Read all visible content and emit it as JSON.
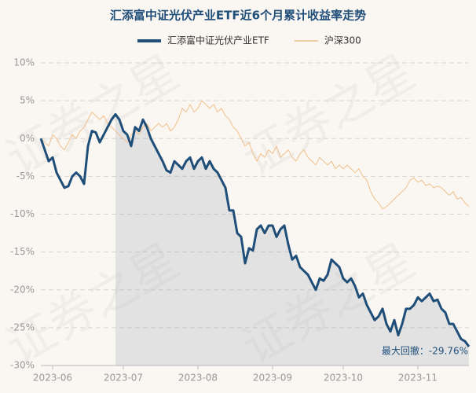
{
  "chart_data": {
    "type": "line",
    "title": "汇添富中证光伏产业ETF近6个月累计收益率走势",
    "watermark": "证券之星",
    "annotation": "最大回撤：-29.76%",
    "categories": [
      null,
      null,
      null,
      "2023-06",
      null,
      null,
      null,
      null,
      null,
      null,
      null,
      null,
      null,
      null,
      null,
      null,
      null,
      null,
      null,
      null,
      null,
      "2023-07",
      null,
      null,
      null,
      null,
      null,
      null,
      null,
      null,
      null,
      null,
      null,
      null,
      null,
      null,
      null,
      null,
      null,
      null,
      "2023-08",
      null,
      null,
      null,
      null,
      null,
      null,
      null,
      null,
      null,
      null,
      null,
      null,
      null,
      null,
      null,
      null,
      null,
      null,
      "2023-09",
      null,
      null,
      null,
      null,
      null,
      null,
      null,
      null,
      null,
      null,
      null,
      null,
      null,
      null,
      null,
      null,
      null,
      "2023-10",
      null,
      null,
      null,
      null,
      null,
      null,
      null,
      null,
      null,
      null,
      null,
      null,
      null,
      null,
      null,
      null,
      null,
      null,
      "2023-11",
      null,
      null,
      null,
      null,
      null,
      null,
      null,
      null,
      null,
      null,
      null,
      null,
      null
    ],
    "series": [
      {
        "name": "汇添富中证光伏产业ETF",
        "color": "#1f4e79",
        "values": [
          0,
          -1.5,
          -3,
          -2.5,
          -4.5,
          -5.5,
          -6.5,
          -6.3,
          -5,
          -4.5,
          -5,
          -6,
          -1,
          1,
          0.8,
          -0.5,
          0.5,
          1.5,
          2.5,
          3.2,
          2.5,
          1,
          0.5,
          -1,
          1.5,
          1,
          2.5,
          1.5,
          0,
          -1,
          -2,
          -3,
          -4.2,
          -4.5,
          -3,
          -3.5,
          -4,
          -3,
          -2.5,
          -4,
          -3,
          -2.5,
          -4,
          -3,
          -4,
          -4.5,
          -5.5,
          -6.5,
          -9.5,
          -9.5,
          -12.5,
          -13,
          -16.5,
          -14.5,
          -14.8,
          -12,
          -11.5,
          -12.5,
          -11.5,
          -11.5,
          -13,
          -12,
          -11.5,
          -14,
          -16,
          -15.5,
          -17,
          -17.5,
          -18,
          -19,
          -20,
          -18.5,
          -18.8,
          -18,
          -16,
          -16.5,
          -17,
          -18.5,
          -19,
          -18.5,
          -19.5,
          -21,
          -20.5,
          -22,
          -23,
          -24,
          -23.5,
          -22.5,
          -24.5,
          -25.5,
          -24,
          -26,
          -24.5,
          -22.5,
          -22.5,
          -22,
          -21,
          -21.5,
          -21,
          -20.5,
          -21.5,
          -21.3,
          -22.5,
          -23,
          -24.5,
          -24.5,
          -25.5,
          -26.5,
          -26.8,
          -27.5
        ]
      },
      {
        "name": "沪深300",
        "color": "#f0c08a",
        "values": [
          0,
          -0.5,
          -1,
          0.5,
          0,
          -1,
          -1.5,
          -0.5,
          0.5,
          0,
          1,
          1.5,
          2.5,
          3.5,
          3,
          2.5,
          3,
          2,
          1.5,
          1,
          0.5,
          0,
          -0.5,
          0.5,
          1,
          0.5,
          1.5,
          2,
          1,
          1.5,
          2,
          1.5,
          2,
          1,
          1.5,
          2.5,
          4,
          3.5,
          4.5,
          3.5,
          4,
          5,
          4.5,
          4,
          4.5,
          3.5,
          4,
          3,
          2.5,
          1.5,
          1,
          0,
          -1,
          -0.5,
          -2,
          -3,
          -2,
          -2.5,
          -1.5,
          -2,
          -1,
          -2.5,
          -2,
          -1.5,
          -2.5,
          -3,
          -2,
          -1.5,
          -2.5,
          -3,
          -3.5,
          -2.5,
          -3,
          -3.5,
          -3,
          -4,
          -3.5,
          -4,
          -3.5,
          -4,
          -4.5,
          -4,
          -5,
          -5.5,
          -7,
          -8,
          -8.5,
          -9.3,
          -9,
          -8.5,
          -8,
          -7.5,
          -7,
          -6.5,
          -5.5,
          -5.2,
          -5.8,
          -5.5,
          -6.2,
          -6,
          -6.5,
          -6.3,
          -6.5,
          -7,
          -7.5,
          -7,
          -8,
          -7.8,
          -8.5,
          -9
        ]
      }
    ],
    "ylim": [
      -30,
      10
    ],
    "yticks": [
      {
        "value": 10,
        "label": "10%"
      },
      {
        "value": 5,
        "label": "5%"
      },
      {
        "value": 0,
        "label": "0%"
      },
      {
        "value": -5,
        "label": "-5%"
      },
      {
        "value": -10,
        "label": "-10%"
      },
      {
        "value": -15,
        "label": "-15%"
      },
      {
        "value": -20,
        "label": "-20%"
      },
      {
        "value": -25,
        "label": "-25%"
      },
      {
        "value": -30,
        "label": "-30%"
      }
    ],
    "grid": true,
    "legend": "top"
  }
}
